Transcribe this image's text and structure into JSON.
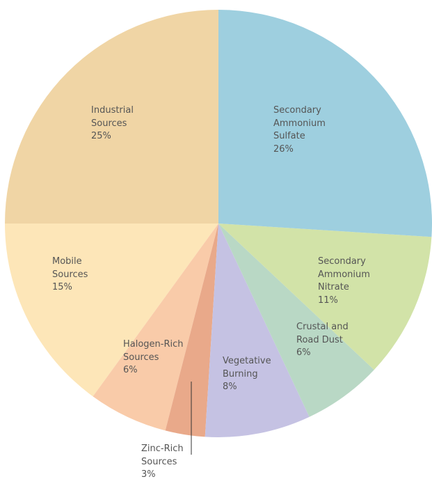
{
  "chart_data": {
    "type": "pie",
    "categories": [
      "Secondary Ammonium Sulfate",
      "Secondary Ammonium Nitrate",
      "Crustal and Road Dust",
      "Vegetative Burning",
      "Zinc-Rich Sources",
      "Halogen-Rich Sources",
      "Mobile Sources",
      "Industrial Sources"
    ],
    "values": [
      26,
      11,
      6,
      8,
      3,
      6,
      15,
      25
    ],
    "value_labels": [
      "26%",
      "11%",
      "6%",
      "8%",
      "3%",
      "6%",
      "15%",
      "25%"
    ],
    "colors": [
      "#9ecfdf",
      "#d2e3a8",
      "#b9d8c5",
      "#c5c2e3",
      "#e9a98a",
      "#f9cba9",
      "#fde6b8",
      "#f0d5a5"
    ]
  }
}
